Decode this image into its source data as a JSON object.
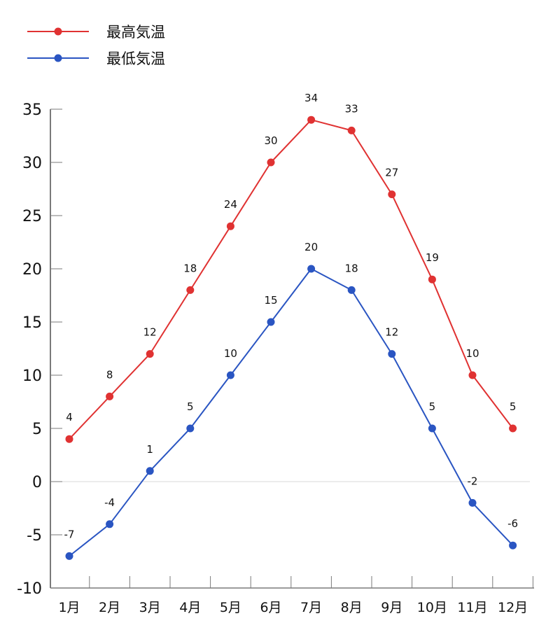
{
  "chart_data": {
    "type": "line",
    "title": "",
    "xlabel": "",
    "ylabel": "",
    "categories": [
      "1月",
      "2月",
      "3月",
      "4月",
      "5月",
      "6月",
      "7月",
      "8月",
      "9月",
      "10月",
      "11月",
      "12月"
    ],
    "series": [
      {
        "name": "最高気温",
        "color": "#e03232",
        "values": [
          4,
          8,
          12,
          18,
          24,
          30,
          34,
          33,
          27,
          19,
          10,
          5
        ]
      },
      {
        "name": "最低気温",
        "color": "#2a55c2",
        "values": [
          -7,
          -4,
          1,
          5,
          10,
          15,
          20,
          18,
          12,
          5,
          -2,
          -6
        ]
      }
    ],
    "ylim": [
      -10,
      35
    ],
    "yticks": [
      35,
      30,
      25,
      20,
      15,
      10,
      5,
      0,
      -5,
      -10
    ],
    "grid": "zero line only",
    "legend_position": "top-left",
    "data_labels": true
  },
  "legend": {
    "items": [
      {
        "label": "最高気温",
        "color": "#e03232"
      },
      {
        "label": "最低気温",
        "color": "#2a55c2"
      }
    ]
  },
  "colors": {
    "axis": "#7a7a7a",
    "zero_line": "#d9d9d9",
    "text": "#111111"
  }
}
